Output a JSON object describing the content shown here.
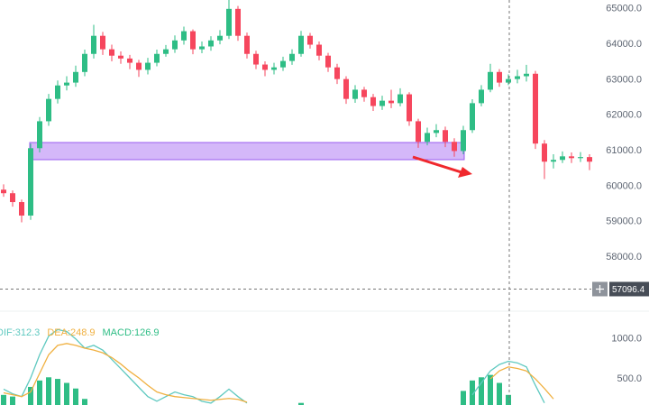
{
  "chart_data": {
    "type": "candlestick",
    "up_color": "#2ebd85",
    "down_color": "#f6465d",
    "ylim": [
      56600,
      65250
    ],
    "yticks": [
      {
        "value": 58000,
        "label": "58000.0"
      },
      {
        "value": 59000,
        "label": "59000.0"
      },
      {
        "value": 60000,
        "label": "60000.0"
      },
      {
        "value": 61000,
        "label": "61000.0"
      },
      {
        "value": 62000,
        "label": "62000.0"
      },
      {
        "value": 63000,
        "label": "63000.0"
      },
      {
        "value": 64000,
        "label": "64000.0"
      },
      {
        "value": 65000,
        "label": "65000.0"
      }
    ],
    "crosshair_price": 57096.4,
    "ohlc": [
      [
        59900,
        60050,
        59700,
        59800
      ],
      [
        59800,
        59880,
        59420,
        59550
      ],
      [
        59550,
        59620,
        58980,
        59170
      ],
      [
        59170,
        61200,
        59050,
        61070
      ],
      [
        61070,
        61950,
        60950,
        61830
      ],
      [
        61830,
        62600,
        61700,
        62460
      ],
      [
        62460,
        62980,
        62330,
        62840
      ],
      [
        62840,
        63100,
        62700,
        62920
      ],
      [
        62920,
        63400,
        62800,
        63220
      ],
      [
        63220,
        63850,
        63100,
        63730
      ],
      [
        63730,
        64550,
        63600,
        64240
      ],
      [
        64240,
        64350,
        63700,
        63860
      ],
      [
        63860,
        63990,
        63520,
        63680
      ],
      [
        63680,
        63800,
        63450,
        63600
      ],
      [
        63600,
        63700,
        63300,
        63480
      ],
      [
        63480,
        63560,
        63080,
        63280
      ],
      [
        63280,
        63620,
        63150,
        63480
      ],
      [
        63480,
        63850,
        63380,
        63730
      ],
      [
        63730,
        63980,
        63650,
        63860
      ],
      [
        63860,
        64250,
        63760,
        64110
      ],
      [
        64110,
        64500,
        63990,
        64370
      ],
      [
        64370,
        64420,
        63720,
        63860
      ],
      [
        63860,
        64080,
        63750,
        63940
      ],
      [
        63940,
        64230,
        63820,
        64110
      ],
      [
        64110,
        64400,
        64000,
        64240
      ],
      [
        64240,
        65250,
        64150,
        65000
      ],
      [
        65000,
        65080,
        64100,
        64240
      ],
      [
        64240,
        64330,
        63600,
        63730
      ],
      [
        63730,
        63820,
        63300,
        63430
      ],
      [
        63430,
        63520,
        63100,
        63280
      ],
      [
        63280,
        63480,
        63150,
        63350
      ],
      [
        63350,
        63650,
        63250,
        63530
      ],
      [
        63530,
        63860,
        63420,
        63730
      ],
      [
        63730,
        64380,
        63650,
        64240
      ],
      [
        64240,
        64320,
        63880,
        63990
      ],
      [
        63990,
        64080,
        63550,
        63680
      ],
      [
        63680,
        63760,
        63220,
        63350
      ],
      [
        63350,
        63450,
        62880,
        63020
      ],
      [
        63020,
        63100,
        62320,
        62460
      ],
      [
        62460,
        62850,
        62350,
        62720
      ],
      [
        62720,
        62800,
        62380,
        62510
      ],
      [
        62510,
        62600,
        62120,
        62260
      ],
      [
        62260,
        62550,
        62150,
        62410
      ],
      [
        62410,
        62720,
        62200,
        62340
      ],
      [
        62340,
        62760,
        62250,
        62590
      ],
      [
        62590,
        62650,
        61700,
        61830
      ],
      [
        61830,
        61900,
        61080,
        61250
      ],
      [
        61250,
        61650,
        61150,
        61500
      ],
      [
        61500,
        61750,
        61380,
        61580
      ],
      [
        61580,
        61680,
        61100,
        61250
      ],
      [
        61250,
        61350,
        60830,
        60990
      ],
      [
        60990,
        61700,
        60900,
        61580
      ],
      [
        61580,
        62450,
        61500,
        62340
      ],
      [
        62340,
        62850,
        62250,
        62720
      ],
      [
        62720,
        63450,
        62650,
        63220
      ],
      [
        63220,
        63300,
        62800,
        62920
      ],
      [
        62920,
        63150,
        62850,
        63020
      ],
      [
        63020,
        63280,
        62900,
        63100
      ],
      [
        63100,
        63420,
        62950,
        63170
      ],
      [
        63170,
        63250,
        61050,
        61200
      ],
      [
        61200,
        61300,
        60200,
        60690
      ],
      [
        60690,
        60900,
        60500,
        60740
      ],
      [
        60740,
        60980,
        60650,
        60840
      ],
      [
        60840,
        60950,
        60650,
        60790
      ],
      [
        60790,
        60960,
        60680,
        60820
      ],
      [
        60820,
        60900,
        60450,
        60690
      ],
      [
        60690,
        61050,
        60580,
        60940
      ],
      [
        60940,
        61550,
        60850,
        61450
      ]
    ],
    "macd": {
      "ylim": [
        174,
        1267
      ],
      "yticks": [
        {
          "value": 500,
          "label": "500.0"
        },
        {
          "value": 1000,
          "label": "1000.0"
        }
      ],
      "legend": [
        {
          "text": "DIF:312.3",
          "color": "#5fc9c0"
        },
        {
          "text": "DEA:248.9",
          "color": "#f0b040"
        },
        {
          "text": "MACD:126.9",
          "color": "#2ebd85"
        }
      ],
      "dif": [
        372,
        314,
        279,
        512,
        802,
        1035,
        1116,
        1093,
        1000,
        884,
        919,
        860,
        744,
        628,
        512,
        395,
        279,
        221,
        279,
        337,
        302,
        279,
        221,
        198,
        279,
        372,
        279,
        198,
        null,
        null,
        null,
        null,
        null,
        null,
        null,
        null,
        null,
        null,
        null,
        null,
        null,
        null,
        null,
        null,
        null,
        null,
        null,
        null,
        null,
        null,
        null,
        null,
        300,
        450,
        600,
        680,
        720,
        700,
        650,
        420,
        200,
        null,
        null,
        null,
        null,
        null,
        null,
        null
      ],
      "dea": [
        326,
        302,
        279,
        337,
        570,
        802,
        919,
        942,
        919,
        884,
        860,
        826,
        767,
        686,
        593,
        512,
        419,
        337,
        302,
        279,
        267,
        256,
        244,
        233,
        244,
        256,
        244,
        209,
        null,
        null,
        null,
        null,
        null,
        null,
        null,
        null,
        null,
        null,
        null,
        null,
        null,
        null,
        null,
        null,
        null,
        null,
        null,
        null,
        null,
        null,
        null,
        null,
        null,
        null,
        500,
        600,
        650,
        630,
        600,
        500,
        380,
        250,
        null,
        null,
        null,
        null,
        null,
        null
      ],
      "hist": [
        300,
        280,
        null,
        400,
        480,
        520,
        500,
        450,
        380,
        250,
        null,
        null,
        null,
        null,
        null,
        null,
        null,
        null,
        null,
        null,
        null,
        null,
        null,
        null,
        null,
        null,
        null,
        null,
        null,
        null,
        null,
        null,
        null,
        200,
        null,
        null,
        null,
        null,
        null,
        null,
        null,
        null,
        null,
        null,
        null,
        null,
        null,
        null,
        null,
        null,
        null,
        350,
        480,
        520,
        550,
        450,
        300,
        null,
        null,
        null,
        null,
        null,
        null,
        null,
        null,
        null,
        null,
        null
      ]
    }
  }
}
